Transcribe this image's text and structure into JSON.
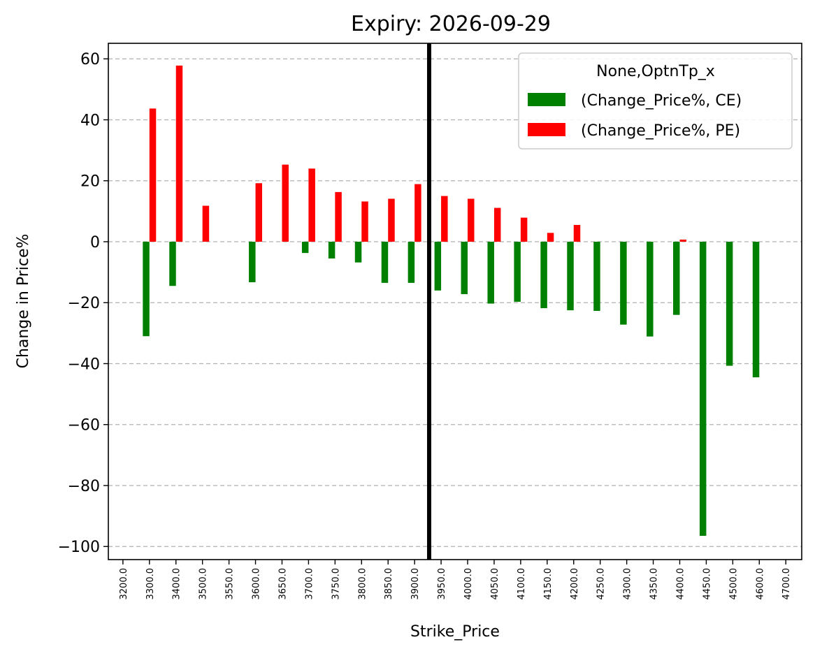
{
  "chart_data": {
    "type": "bar",
    "title": "Expiry: 2026-09-29",
    "xlabel": "Strike_Price",
    "ylabel": "Change in Price%",
    "categories": [
      "3200.0",
      "3300.0",
      "3400.0",
      "3500.0",
      "3550.0",
      "3600.0",
      "3650.0",
      "3700.0",
      "3750.0",
      "3800.0",
      "3850.0",
      "3900.0",
      "3950.0",
      "4000.0",
      "4050.0",
      "4100.0",
      "4150.0",
      "4200.0",
      "4250.0",
      "4300.0",
      "4350.0",
      "4400.0",
      "4450.0",
      "4500.0",
      "4600.0",
      "4700.0"
    ],
    "series": [
      {
        "name": "(Change_Price%, CE)",
        "color": "#008000",
        "values": [
          null,
          -31,
          -14.5,
          null,
          null,
          -13.3,
          null,
          -3.7,
          -5.5,
          -6.8,
          -13.5,
          -13.5,
          -16,
          -17.2,
          -20.3,
          -19.7,
          -21.8,
          -22.5,
          -22.7,
          -27.2,
          -31.1,
          -24,
          -96.5,
          -40.7,
          -44.5,
          null
        ]
      },
      {
        "name": "(Change_Price%, PE)",
        "color": "#ff0000",
        "values": [
          null,
          43.7,
          57.8,
          11.8,
          null,
          19.2,
          25.3,
          24,
          16.3,
          13.2,
          14.1,
          18.9,
          15,
          14.1,
          11.1,
          7.9,
          2.9,
          5.5,
          null,
          null,
          null,
          0.7,
          null,
          null,
          null,
          null
        ]
      }
    ],
    "legend_title": "None,OptnTp_x",
    "legend_position": "top-right",
    "yticks": [
      "60",
      "40",
      "20",
      "0",
      "−20",
      "−40",
      "−60",
      "−80",
      "−100"
    ],
    "ytick_values": [
      60,
      40,
      20,
      0,
      -20,
      -40,
      -60,
      -80,
      -100
    ],
    "ylim": [
      -104.3,
      65.1
    ],
    "grid_y": true,
    "vline_category": "3950.0",
    "vline_color": "#000000"
  }
}
